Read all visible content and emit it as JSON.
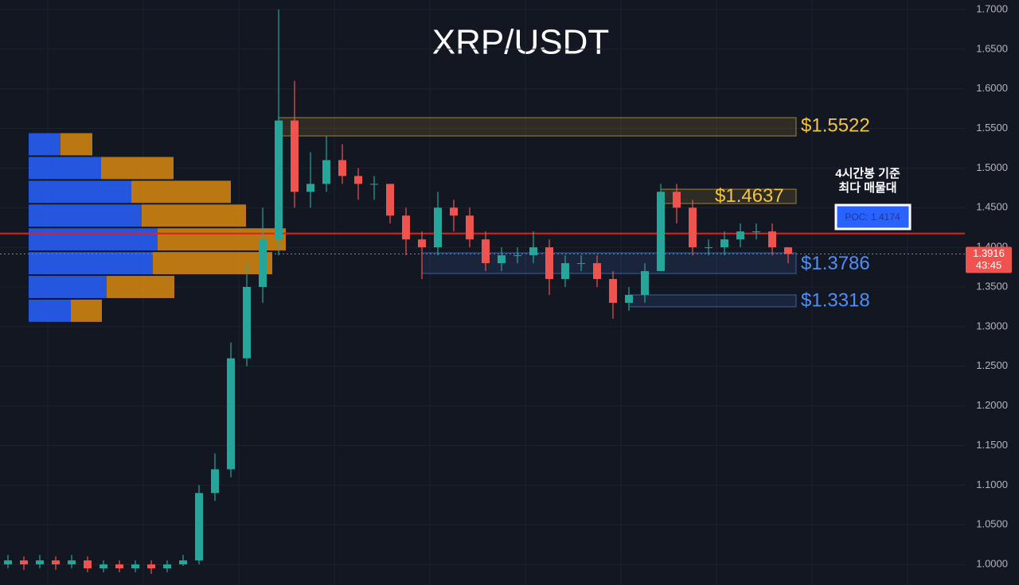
{
  "chart_data": {
    "type": "candlestick",
    "title": "XRP/USDT",
    "ylim": [
      0.974,
      1.712
    ],
    "yticks": [
      {
        "value": 1.0,
        "label": "1.0000"
      },
      {
        "value": 1.05,
        "label": "1.0500"
      },
      {
        "value": 1.1,
        "label": "1.1000"
      },
      {
        "value": 1.15,
        "label": "1.1500"
      },
      {
        "value": 1.2,
        "label": "1.2000"
      },
      {
        "value": 1.25,
        "label": "1.2500"
      },
      {
        "value": 1.3,
        "label": "1.3000"
      },
      {
        "value": 1.35,
        "label": "1.3500"
      },
      {
        "value": 1.4,
        "label": "1.4000"
      },
      {
        "value": 1.45,
        "label": "1.4500"
      },
      {
        "value": 1.5,
        "label": "1.5000"
      },
      {
        "value": 1.55,
        "label": "1.5500"
      },
      {
        "value": 1.6,
        "label": "1.6000"
      },
      {
        "value": 1.65,
        "label": "1.6500"
      },
      {
        "value": 1.7,
        "label": "1.7000"
      }
    ],
    "grid": true,
    "up_color": "#26a69a",
    "down_color": "#ef5350",
    "open": [
      1.0,
      1.005,
      1.0,
      1.005,
      1.0,
      1.005,
      0.995,
      1.0,
      0.995,
      1.0,
      0.995,
      1.0,
      1.005,
      1.09,
      1.12,
      1.26,
      1.35,
      1.41,
      1.56,
      1.47,
      1.48,
      1.51,
      1.49,
      1.48,
      1.48,
      1.44,
      1.41,
      1.4,
      1.45,
      1.44,
      1.41,
      1.38,
      1.39,
      1.39,
      1.4,
      1.36,
      1.38,
      1.38,
      1.36,
      1.33,
      1.34,
      1.37,
      1.47,
      1.45,
      1.4,
      1.4,
      1.41,
      1.42,
      1.42,
      1.4
    ],
    "high": [
      1.012,
      1.01,
      1.012,
      1.01,
      1.012,
      1.01,
      1.005,
      1.005,
      1.005,
      1.005,
      1.005,
      1.012,
      1.1,
      1.14,
      1.28,
      1.38,
      1.45,
      1.7,
      1.61,
      1.52,
      1.54,
      1.53,
      1.5,
      1.49,
      1.48,
      1.45,
      1.42,
      1.47,
      1.46,
      1.45,
      1.42,
      1.4,
      1.4,
      1.42,
      1.41,
      1.39,
      1.39,
      1.39,
      1.37,
      1.35,
      1.38,
      1.48,
      1.48,
      1.46,
      1.41,
      1.42,
      1.43,
      1.43,
      1.43,
      1.4
    ],
    "low": [
      0.995,
      0.993,
      0.995,
      0.993,
      0.995,
      0.99,
      0.99,
      0.99,
      0.99,
      0.988,
      0.99,
      0.998,
      1.0,
      1.08,
      1.11,
      1.25,
      1.33,
      1.39,
      1.45,
      1.45,
      1.47,
      1.48,
      1.46,
      1.46,
      1.43,
      1.39,
      1.36,
      1.39,
      1.42,
      1.4,
      1.37,
      1.37,
      1.38,
      1.38,
      1.34,
      1.35,
      1.37,
      1.35,
      1.31,
      1.32,
      1.33,
      1.37,
      1.43,
      1.39,
      1.39,
      1.39,
      1.4,
      1.41,
      1.39,
      1.38
    ],
    "close": [
      1.005,
      1.0,
      1.005,
      1.0,
      1.005,
      0.995,
      1.0,
      0.995,
      1.0,
      0.995,
      1.0,
      1.005,
      1.09,
      1.12,
      1.26,
      1.35,
      1.41,
      1.56,
      1.47,
      1.48,
      1.51,
      1.49,
      1.48,
      1.48,
      1.44,
      1.41,
      1.4,
      1.45,
      1.44,
      1.41,
      1.38,
      1.39,
      1.39,
      1.4,
      1.36,
      1.38,
      1.38,
      1.36,
      1.33,
      1.34,
      1.37,
      1.47,
      1.45,
      1.4,
      1.4,
      1.41,
      1.42,
      1.42,
      1.4,
      1.3916
    ],
    "volume_profile": {
      "prices": [
        1.53,
        1.5,
        1.47,
        1.44,
        1.41,
        1.38,
        1.35,
        1.32
      ],
      "buy": [
        40,
        91,
        129,
        142,
        162,
        156,
        98,
        53
      ],
      "sell": [
        40,
        91,
        125,
        131,
        161,
        150,
        85,
        39
      ],
      "buy_color": "#2962ff",
      "sell_color": "#d9890f"
    },
    "zones": [
      {
        "low": 1.5405,
        "high": 1.5636,
        "start": 17,
        "value": 1.5522,
        "label": "$1.5522",
        "color": "#f4c542"
      },
      {
        "low": 1.4553,
        "high": 1.4733,
        "start": 41,
        "value": 1.4637,
        "label": "$1.4637",
        "color": "#f4c542"
      },
      {
        "low": 1.367,
        "high": 1.393,
        "start": 26,
        "value": 1.3786,
        "label": "$1.3786",
        "color": "#4f8ef7"
      },
      {
        "low": 1.325,
        "high": 1.34,
        "start": 39,
        "value": 1.3318,
        "label": "$1.3318",
        "color": "#4f8ef7"
      }
    ],
    "poc": {
      "value": 1.4174,
      "label": "POC: 1.4174",
      "color": "#e02020"
    },
    "annotation": [
      "4시간봉 기준",
      "최다 매물대"
    ],
    "current_price": 1.3916,
    "countdown": "43:45"
  }
}
